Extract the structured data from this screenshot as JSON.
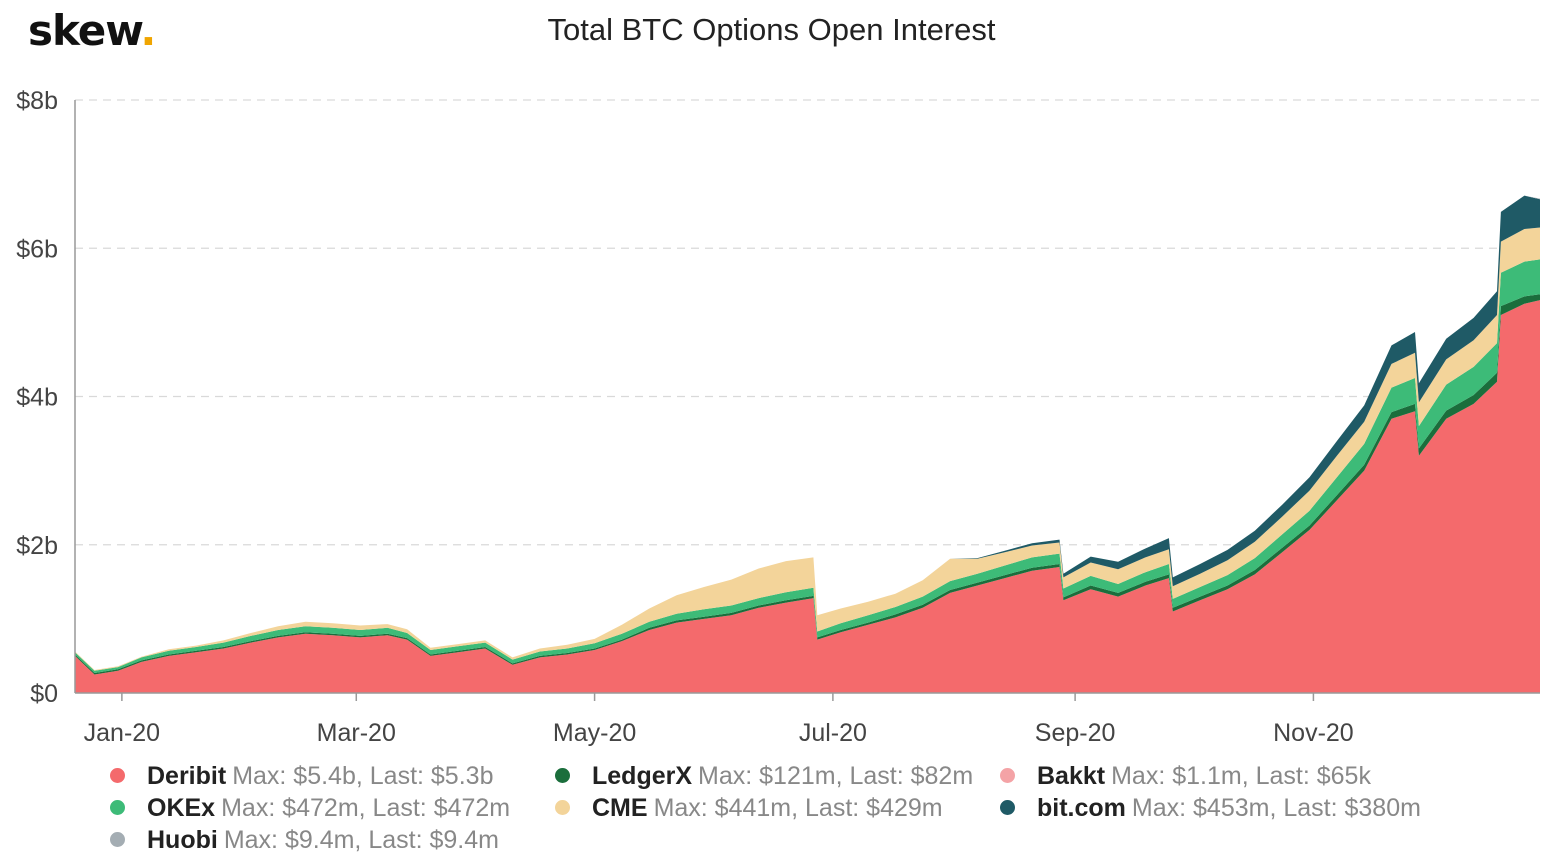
{
  "header": {
    "logo_text": "skew",
    "logo_dot": ".",
    "title": "Total BTC Options Open Interest"
  },
  "legend": [
    {
      "name": "Deribit",
      "stats": "Max: $5.4b, Last: $5.3b",
      "color": "#f46a6c"
    },
    {
      "name": "LedgerX",
      "stats": "Max: $121m, Last: $82m",
      "color": "#1b6e3c"
    },
    {
      "name": "Bakkt",
      "stats": "Max: $1.1m, Last: $65k",
      "color": "#f4a3a6"
    },
    {
      "name": "OKEx",
      "stats": "Max: $472m, Last: $472m",
      "color": "#3dbb78"
    },
    {
      "name": "CME",
      "stats": "Max: $441m, Last: $429m",
      "color": "#f3d49a"
    },
    {
      "name": "bit.com",
      "stats": "Max: $453m, Last: $380m",
      "color": "#1f5a66"
    },
    {
      "name": "Huobi",
      "stats": "Max: $9.4m, Last: $9.4m",
      "color": "#a4adb3"
    }
  ],
  "chart_data": {
    "type": "area",
    "stacked": true,
    "title": "Total BTC Options Open Interest",
    "ylabel": "",
    "xlabel": "",
    "y_tick_labels": [
      "$0",
      "$2b",
      "$4b",
      "$6b",
      "$8b"
    ],
    "y_ticks": [
      0,
      2,
      4,
      6,
      8
    ],
    "ylim": [
      0,
      8
    ],
    "y_unit": "billion USD",
    "x_tick_labels": [
      "Jan-20",
      "Mar-20",
      "May-20",
      "Jul-20",
      "Sep-20",
      "Nov-20"
    ],
    "x_ticks": [
      "2020-01-01",
      "2020-03-01",
      "2020-05-01",
      "2020-07-01",
      "2020-09-01",
      "2020-11-01"
    ],
    "xlim": [
      "2019-12-20",
      "2020-12-29"
    ],
    "grid": "horizontal dashed",
    "x": [
      "2019-12-20",
      "2019-12-25",
      "2019-12-31",
      "2020-01-06",
      "2020-01-13",
      "2020-01-20",
      "2020-01-27",
      "2020-02-03",
      "2020-02-10",
      "2020-02-17",
      "2020-02-24",
      "2020-03-02",
      "2020-03-09",
      "2020-03-14",
      "2020-03-20",
      "2020-03-27",
      "2020-04-03",
      "2020-04-10",
      "2020-04-17",
      "2020-04-24",
      "2020-05-01",
      "2020-05-08",
      "2020-05-15",
      "2020-05-22",
      "2020-05-29",
      "2020-06-05",
      "2020-06-12",
      "2020-06-19",
      "2020-06-26",
      "2020-06-27",
      "2020-07-03",
      "2020-07-10",
      "2020-07-17",
      "2020-07-24",
      "2020-07-31",
      "2020-08-07",
      "2020-08-14",
      "2020-08-21",
      "2020-08-28",
      "2020-08-29",
      "2020-09-05",
      "2020-09-12",
      "2020-09-19",
      "2020-09-25",
      "2020-09-26",
      "2020-10-03",
      "2020-10-10",
      "2020-10-17",
      "2020-10-24",
      "2020-10-31",
      "2020-11-07",
      "2020-11-14",
      "2020-11-21",
      "2020-11-27",
      "2020-11-28",
      "2020-12-05",
      "2020-12-12",
      "2020-12-18",
      "2020-12-19",
      "2020-12-25",
      "2020-12-29"
    ],
    "series": [
      {
        "name": "Deribit",
        "values": [
          0.5,
          0.25,
          0.3,
          0.42,
          0.5,
          0.55,
          0.6,
          0.68,
          0.75,
          0.8,
          0.78,
          0.75,
          0.78,
          0.72,
          0.5,
          0.55,
          0.6,
          0.38,
          0.48,
          0.52,
          0.58,
          0.7,
          0.85,
          0.95,
          1.0,
          1.05,
          1.15,
          1.22,
          1.28,
          0.72,
          0.82,
          0.92,
          1.02,
          1.15,
          1.35,
          1.45,
          1.55,
          1.65,
          1.7,
          1.25,
          1.4,
          1.3,
          1.45,
          1.55,
          1.1,
          1.25,
          1.4,
          1.6,
          1.9,
          2.2,
          2.6,
          3.0,
          3.7,
          3.8,
          3.2,
          3.7,
          3.9,
          4.2,
          5.1,
          5.25,
          5.3
        ]
      },
      {
        "name": "LedgerX",
        "values": [
          0.02,
          0.02,
          0.02,
          0.02,
          0.02,
          0.02,
          0.02,
          0.02,
          0.02,
          0.02,
          0.02,
          0.02,
          0.02,
          0.02,
          0.02,
          0.02,
          0.02,
          0.02,
          0.02,
          0.02,
          0.02,
          0.02,
          0.03,
          0.03,
          0.03,
          0.03,
          0.03,
          0.03,
          0.03,
          0.03,
          0.03,
          0.03,
          0.04,
          0.04,
          0.04,
          0.04,
          0.04,
          0.04,
          0.04,
          0.04,
          0.05,
          0.05,
          0.05,
          0.05,
          0.05,
          0.05,
          0.05,
          0.06,
          0.06,
          0.06,
          0.07,
          0.08,
          0.09,
          0.1,
          0.1,
          0.11,
          0.12,
          0.12,
          0.12,
          0.1,
          0.08
        ]
      },
      {
        "name": "Bakkt",
        "values": [
          0,
          0,
          0,
          0,
          0,
          0,
          0,
          0,
          0,
          0,
          0,
          0,
          0,
          0,
          0,
          0,
          0,
          0,
          0,
          0,
          0,
          0,
          0,
          0,
          0,
          0,
          0,
          0,
          0,
          0,
          0,
          0,
          0,
          0,
          0,
          0,
          0,
          0,
          0,
          0,
          0,
          0,
          0,
          0,
          0,
          0,
          0,
          0,
          0,
          0,
          0,
          0,
          0,
          0,
          0,
          0,
          0,
          0,
          0,
          0,
          0
        ]
      },
      {
        "name": "OKEx",
        "values": [
          0.03,
          0.03,
          0.03,
          0.04,
          0.05,
          0.05,
          0.06,
          0.07,
          0.08,
          0.08,
          0.08,
          0.08,
          0.08,
          0.07,
          0.06,
          0.06,
          0.06,
          0.05,
          0.06,
          0.06,
          0.07,
          0.08,
          0.08,
          0.09,
          0.1,
          0.1,
          0.1,
          0.11,
          0.11,
          0.08,
          0.09,
          0.1,
          0.1,
          0.11,
          0.12,
          0.12,
          0.13,
          0.14,
          0.14,
          0.12,
          0.13,
          0.12,
          0.13,
          0.14,
          0.12,
          0.13,
          0.14,
          0.16,
          0.18,
          0.2,
          0.24,
          0.28,
          0.33,
          0.35,
          0.3,
          0.35,
          0.38,
          0.4,
          0.45,
          0.47,
          0.47
        ]
      },
      {
        "name": "CME",
        "values": [
          0.01,
          0.01,
          0.01,
          0.01,
          0.02,
          0.02,
          0.03,
          0.04,
          0.05,
          0.06,
          0.06,
          0.06,
          0.05,
          0.05,
          0.03,
          0.03,
          0.03,
          0.03,
          0.04,
          0.05,
          0.06,
          0.12,
          0.18,
          0.25,
          0.3,
          0.35,
          0.4,
          0.42,
          0.41,
          0.22,
          0.2,
          0.18,
          0.18,
          0.22,
          0.3,
          0.2,
          0.18,
          0.16,
          0.15,
          0.15,
          0.18,
          0.2,
          0.2,
          0.2,
          0.17,
          0.18,
          0.2,
          0.22,
          0.24,
          0.27,
          0.29,
          0.3,
          0.32,
          0.34,
          0.32,
          0.34,
          0.36,
          0.38,
          0.42,
          0.44,
          0.43
        ]
      },
      {
        "name": "bit.com",
        "values": [
          0,
          0,
          0,
          0,
          0,
          0,
          0,
          0,
          0,
          0,
          0,
          0,
          0,
          0,
          0,
          0,
          0,
          0,
          0,
          0,
          0,
          0,
          0,
          0,
          0,
          0,
          0,
          0,
          0,
          0,
          0,
          0,
          0,
          0,
          0,
          0.01,
          0.02,
          0.03,
          0.04,
          0.05,
          0.08,
          0.1,
          0.12,
          0.15,
          0.12,
          0.13,
          0.14,
          0.15,
          0.16,
          0.18,
          0.2,
          0.22,
          0.25,
          0.28,
          0.26,
          0.28,
          0.3,
          0.32,
          0.4,
          0.45,
          0.38
        ]
      },
      {
        "name": "Huobi",
        "values": [
          0,
          0,
          0,
          0,
          0,
          0,
          0,
          0,
          0,
          0,
          0,
          0,
          0,
          0,
          0,
          0,
          0,
          0,
          0,
          0,
          0,
          0,
          0,
          0,
          0,
          0,
          0,
          0,
          0,
          0,
          0,
          0,
          0,
          0,
          0,
          0,
          0,
          0,
          0,
          0,
          0,
          0,
          0,
          0,
          0,
          0,
          0,
          0,
          0,
          0,
          0,
          0,
          0,
          0,
          0,
          0,
          0,
          0,
          0,
          0,
          0.01
        ]
      }
    ]
  }
}
